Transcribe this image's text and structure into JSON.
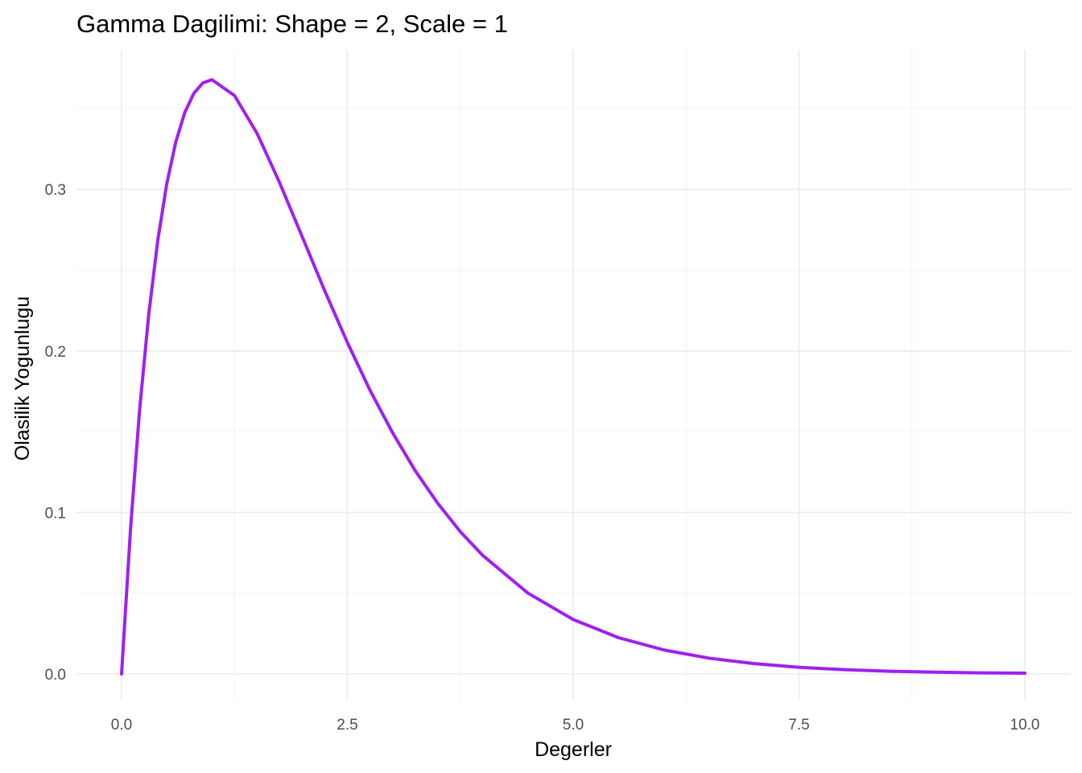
{
  "chart_data": {
    "type": "line",
    "title": "Gamma Dagilimi: Shape = 2, Scale = 1",
    "xlabel": "Degerler",
    "ylabel": "Olasilik Yogunlugu",
    "xlim": [
      0,
      10
    ],
    "ylim": [
      0,
      0.3679
    ],
    "x_ticks": [
      0,
      2.5,
      5,
      7.5,
      10
    ],
    "x_tick_labels": [
      "0.0",
      "2.5",
      "5.0",
      "7.5",
      "10.0"
    ],
    "y_ticks": [
      0,
      0.1,
      0.2,
      0.3
    ],
    "y_tick_labels": [
      "0.0",
      "0.1",
      "0.2",
      "0.3"
    ],
    "x_minor_ticks": [
      1.25,
      3.75,
      6.25,
      8.75
    ],
    "y_minor_ticks": [
      0.05,
      0.15,
      0.25,
      0.35
    ],
    "grid": true,
    "legend": "none",
    "series": [
      {
        "color": "#a020f0",
        "x": [
          0,
          0.1,
          0.2,
          0.3,
          0.4,
          0.5,
          0.6,
          0.7,
          0.8,
          0.9,
          1.0,
          1.25,
          1.5,
          1.75,
          2.0,
          2.25,
          2.5,
          2.75,
          3.0,
          3.25,
          3.5,
          3.75,
          4.0,
          4.5,
          5.0,
          5.5,
          6.0,
          6.5,
          7.0,
          7.5,
          8.0,
          8.5,
          9.0,
          9.5,
          10.0
        ],
        "y": [
          0,
          0.0905,
          0.1637,
          0.2222,
          0.2681,
          0.3033,
          0.3293,
          0.3476,
          0.3595,
          0.3659,
          0.3679,
          0.3581,
          0.3347,
          0.3041,
          0.2707,
          0.2371,
          0.2052,
          0.1757,
          0.1494,
          0.1259,
          0.1057,
          0.0881,
          0.0733,
          0.05,
          0.0337,
          0.0225,
          0.0149,
          0.0098,
          0.0064,
          0.0041,
          0.0027,
          0.0017,
          0.0011,
          0.0007,
          0.0005
        ]
      }
    ]
  }
}
